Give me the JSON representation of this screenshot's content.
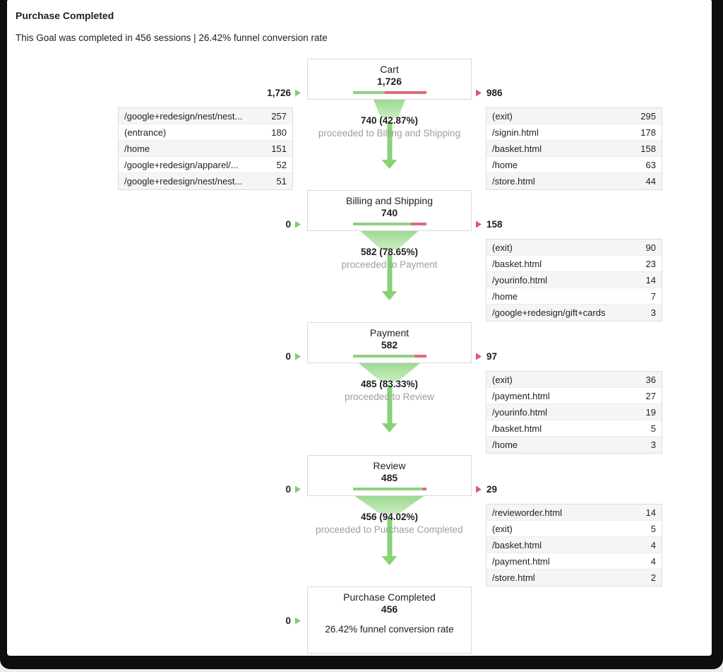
{
  "page": {
    "title": "Purchase Completed",
    "subtitle": "This Goal was completed in 456 sessions | 26.42% funnel conversion rate"
  },
  "colors": {
    "bar_green": "#8fd07f",
    "bar_red": "#e0697b",
    "funnel_green_top": "#9dda91",
    "funnel_green_bottom": "#c9ecc1",
    "arrow_green": "#86d377",
    "entry_marker_green": "#7fd06e",
    "exit_marker_red": "#e25672",
    "secondary_text_gray": "#9e9e9e"
  },
  "chart_data": {
    "type": "funnel",
    "title": "Purchase Completed",
    "subtitle": "This Goal was completed in 456 sessions | 26.42% funnel conversion rate",
    "total_conversions": 456,
    "funnel_conversion_rate": "26.42%",
    "stages": [
      {
        "name": "Cart",
        "value": 1726,
        "value_display": "1,726",
        "entered_display": "1,726",
        "exited_display": "986",
        "continued_pct": 42.87,
        "proceeded_display": "740 (42.87%)",
        "proceeded_label": "proceeded to Billing and Shipping",
        "entry_pages": [
          {
            "label": "/google+redesign/nest/nest...",
            "value": "257"
          },
          {
            "label": "(entrance)",
            "value": "180"
          },
          {
            "label": "/home",
            "value": "151"
          },
          {
            "label": "/google+redesign/apparel/...",
            "value": "52"
          },
          {
            "label": "/google+redesign/nest/nest...",
            "value": "51"
          }
        ],
        "exit_pages": [
          {
            "label": "(exit)",
            "value": "295"
          },
          {
            "label": "/signin.html",
            "value": "178"
          },
          {
            "label": "/basket.html",
            "value": "158"
          },
          {
            "label": "/home",
            "value": "63"
          },
          {
            "label": "/store.html",
            "value": "44"
          }
        ]
      },
      {
        "name": "Billing and Shipping",
        "value": 740,
        "value_display": "740",
        "entered_display": "0",
        "exited_display": "158",
        "continued_pct": 78.65,
        "proceeded_display": "582 (78.65%)",
        "proceeded_label": "proceeded to Payment",
        "exit_pages": [
          {
            "label": "(exit)",
            "value": "90"
          },
          {
            "label": "/basket.html",
            "value": "23"
          },
          {
            "label": "/yourinfo.html",
            "value": "14"
          },
          {
            "label": "/home",
            "value": "7"
          },
          {
            "label": "/google+redesign/gift+cards",
            "value": "3"
          }
        ]
      },
      {
        "name": "Payment",
        "value": 582,
        "value_display": "582",
        "entered_display": "0",
        "exited_display": "97",
        "continued_pct": 83.33,
        "proceeded_display": "485 (83.33%)",
        "proceeded_label": "proceeded to Review",
        "exit_pages": [
          {
            "label": "(exit)",
            "value": "36"
          },
          {
            "label": "/payment.html",
            "value": "27"
          },
          {
            "label": "/yourinfo.html",
            "value": "19"
          },
          {
            "label": "/basket.html",
            "value": "5"
          },
          {
            "label": "/home",
            "value": "3"
          }
        ]
      },
      {
        "name": "Review",
        "value": 485,
        "value_display": "485",
        "entered_display": "0",
        "exited_display": "29",
        "continued_pct": 94.02,
        "proceeded_display": "456 (94.02%)",
        "proceeded_label": "proceeded to Purchase Completed",
        "exit_pages": [
          {
            "label": "/revieworder.html",
            "value": "14"
          },
          {
            "label": "(exit)",
            "value": "5"
          },
          {
            "label": "/basket.html",
            "value": "4"
          },
          {
            "label": "/payment.html",
            "value": "4"
          },
          {
            "label": "/store.html",
            "value": "2"
          }
        ]
      },
      {
        "name": "Purchase Completed",
        "value": 456,
        "value_display": "456",
        "entered_display": "0",
        "note": "26.42% funnel conversion rate"
      }
    ]
  }
}
